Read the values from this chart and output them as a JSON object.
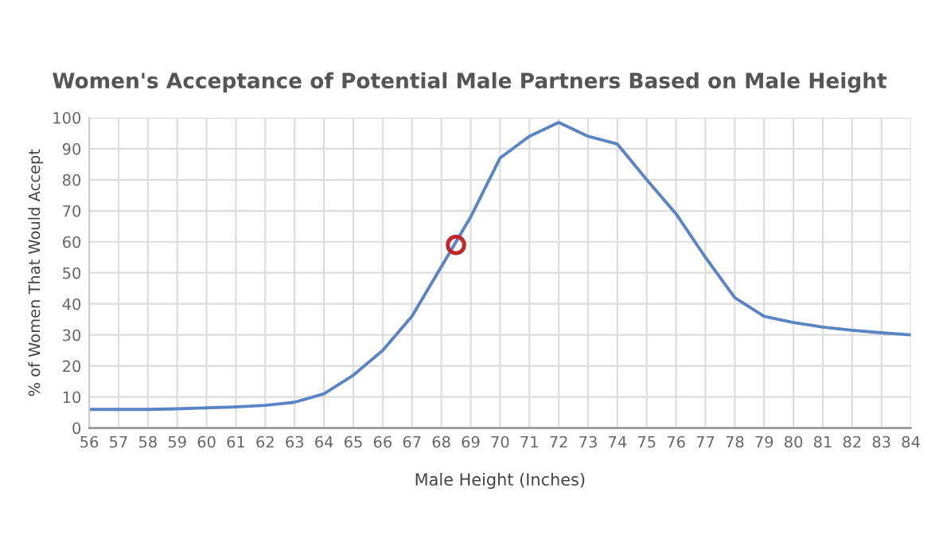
{
  "chart_data": {
    "type": "line",
    "title": "Women's Acceptance of Potential Male Partners Based on Male Height",
    "xlabel": "Male Height (Inches)",
    "ylabel": "% of Women That Would Accept",
    "series": [
      {
        "color": "#5b84c4",
        "x": [
          56,
          57,
          58,
          59,
          60,
          61,
          62,
          63,
          64,
          65,
          66,
          67,
          68,
          69,
          70,
          71,
          72,
          73,
          74,
          75,
          76,
          77,
          78,
          79,
          80,
          81,
          82,
          83,
          84
        ],
        "values": [
          6,
          6,
          6,
          6.2,
          6.5,
          6.8,
          7.3,
          8.3,
          11,
          17,
          25,
          36,
          52,
          68,
          87,
          94,
          98.5,
          94,
          91.5,
          80,
          69,
          55,
          42,
          36,
          34,
          32.5,
          31.5,
          30.7,
          30
        ]
      },
      {
        "type": "scatter",
        "color": "#c0282d",
        "x": [
          68.5
        ],
        "values": [
          59
        ],
        "marker": "circle"
      }
    ],
    "xlim": [
      56,
      84
    ],
    "xticks": [
      56,
      57,
      58,
      59,
      60,
      61,
      62,
      63,
      64,
      65,
      66,
      67,
      68,
      69,
      70,
      71,
      72,
      73,
      74,
      75,
      76,
      77,
      78,
      79,
      80,
      81,
      82,
      83,
      84
    ],
    "ylim": [
      0,
      100
    ],
    "yticks": [
      0,
      10,
      20,
      30,
      40,
      50,
      60,
      70,
      80,
      90,
      100
    ],
    "grid": true
  }
}
